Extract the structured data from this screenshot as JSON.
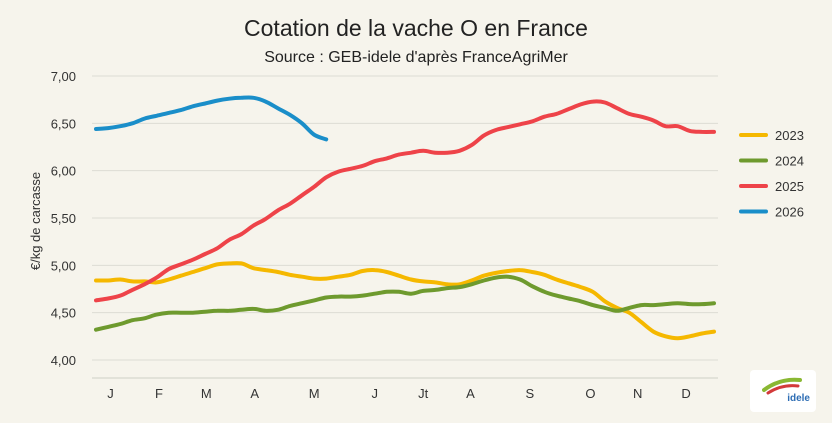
{
  "chart_data": {
    "type": "line",
    "title": "Cotation de la vache O en France",
    "subtitle": "Source : GEB-idele d'après FranceAgriMer",
    "ylabel": "€/kg de carcasse",
    "xlabel": "",
    "ylim": [
      4.0,
      7.0
    ],
    "yticks": [
      "4,00",
      "4,50",
      "5,00",
      "5,50",
      "6,00",
      "6,50",
      "7,00"
    ],
    "x_range": [
      1,
      52
    ],
    "month_ticks": [
      {
        "label": "J",
        "week": 2.2
      },
      {
        "label": "F",
        "week": 6.2
      },
      {
        "label": "M",
        "week": 10.1
      },
      {
        "label": "A",
        "week": 14.1
      },
      {
        "label": "M",
        "week": 19.0
      },
      {
        "label": "J",
        "week": 24.0
      },
      {
        "label": "Jt",
        "week": 28.0
      },
      {
        "label": "A",
        "week": 31.9
      },
      {
        "label": "S",
        "week": 36.8
      },
      {
        "label": "O",
        "week": 41.8
      },
      {
        "label": "N",
        "week": 45.7
      },
      {
        "label": "D",
        "week": 49.7
      }
    ],
    "grid": true,
    "legend_position": "right",
    "series": [
      {
        "name": "2023",
        "color": "#f5b800",
        "x": [
          1,
          2,
          3,
          4,
          5,
          6,
          7,
          8,
          9,
          10,
          11,
          12,
          13,
          14,
          15,
          16,
          17,
          18,
          19,
          20,
          21,
          22,
          23,
          24,
          25,
          26,
          27,
          28,
          29,
          30,
          31,
          32,
          33,
          34,
          35,
          36,
          37,
          38,
          39,
          40,
          41,
          42,
          43,
          44,
          45,
          46,
          47,
          48,
          49,
          50,
          51,
          52
        ],
        "values": [
          4.84,
          4.84,
          4.85,
          4.83,
          4.83,
          4.82,
          4.85,
          4.89,
          4.93,
          4.97,
          5.01,
          5.02,
          5.02,
          4.97,
          4.95,
          4.93,
          4.9,
          4.88,
          4.86,
          4.86,
          4.88,
          4.9,
          4.94,
          4.95,
          4.93,
          4.89,
          4.85,
          4.83,
          4.82,
          4.8,
          4.8,
          4.84,
          4.89,
          4.92,
          4.94,
          4.95,
          4.93,
          4.9,
          4.85,
          4.81,
          4.77,
          4.72,
          4.62,
          4.55,
          4.5,
          4.4,
          4.3,
          4.25,
          4.23,
          4.25,
          4.28,
          4.3
        ]
      },
      {
        "name": "2024",
        "color": "#6e9a2e",
        "x": [
          1,
          2,
          3,
          4,
          5,
          6,
          7,
          8,
          9,
          10,
          11,
          12,
          13,
          14,
          15,
          16,
          17,
          18,
          19,
          20,
          21,
          22,
          23,
          24,
          25,
          26,
          27,
          28,
          29,
          30,
          31,
          32,
          33,
          34,
          35,
          36,
          37,
          38,
          39,
          40,
          41,
          42,
          43,
          44,
          45,
          46,
          47,
          48,
          49,
          50,
          51,
          52
        ],
        "values": [
          4.32,
          4.35,
          4.38,
          4.42,
          4.44,
          4.48,
          4.5,
          4.5,
          4.5,
          4.51,
          4.52,
          4.52,
          4.53,
          4.54,
          4.52,
          4.53,
          4.57,
          4.6,
          4.63,
          4.66,
          4.67,
          4.67,
          4.68,
          4.7,
          4.72,
          4.72,
          4.7,
          4.73,
          4.74,
          4.76,
          4.77,
          4.8,
          4.84,
          4.87,
          4.88,
          4.85,
          4.78,
          4.72,
          4.68,
          4.65,
          4.62,
          4.58,
          4.55,
          4.52,
          4.55,
          4.58,
          4.58,
          4.59,
          4.6,
          4.59,
          4.59,
          4.6
        ]
      },
      {
        "name": "2025",
        "color": "#ee4349",
        "x": [
          1,
          2,
          3,
          4,
          5,
          6,
          7,
          8,
          9,
          10,
          11,
          12,
          13,
          14,
          15,
          16,
          17,
          18,
          19,
          20,
          21,
          22,
          23,
          24,
          25,
          26,
          27,
          28,
          29,
          30,
          31,
          32,
          33,
          34,
          35,
          36,
          37,
          38,
          39,
          40,
          41,
          42,
          43,
          44,
          45,
          46,
          47,
          48,
          49,
          50,
          51,
          52
        ],
        "values": [
          4.63,
          4.65,
          4.68,
          4.74,
          4.8,
          4.87,
          4.96,
          5.01,
          5.06,
          5.12,
          5.18,
          5.27,
          5.33,
          5.42,
          5.49,
          5.58,
          5.65,
          5.74,
          5.83,
          5.93,
          5.99,
          6.02,
          6.05,
          6.1,
          6.13,
          6.17,
          6.19,
          6.21,
          6.19,
          6.19,
          6.21,
          6.27,
          6.37,
          6.43,
          6.46,
          6.49,
          6.52,
          6.57,
          6.6,
          6.65,
          6.7,
          6.73,
          6.72,
          6.66,
          6.6,
          6.57,
          6.53,
          6.47,
          6.47,
          6.42,
          6.41,
          6.41
        ]
      },
      {
        "name": "2026",
        "color": "#1a8ec9",
        "x": [
          1,
          2,
          3,
          4,
          5,
          6,
          7,
          8,
          9,
          10,
          11,
          12,
          13,
          14,
          15,
          16,
          17,
          18,
          19,
          20
        ],
        "values": [
          6.44,
          6.45,
          6.47,
          6.5,
          6.55,
          6.58,
          6.61,
          6.64,
          6.68,
          6.71,
          6.74,
          6.76,
          6.77,
          6.77,
          6.73,
          6.66,
          6.59,
          6.5,
          6.38,
          6.33
        ]
      }
    ]
  },
  "logo": {
    "text": "idele"
  }
}
